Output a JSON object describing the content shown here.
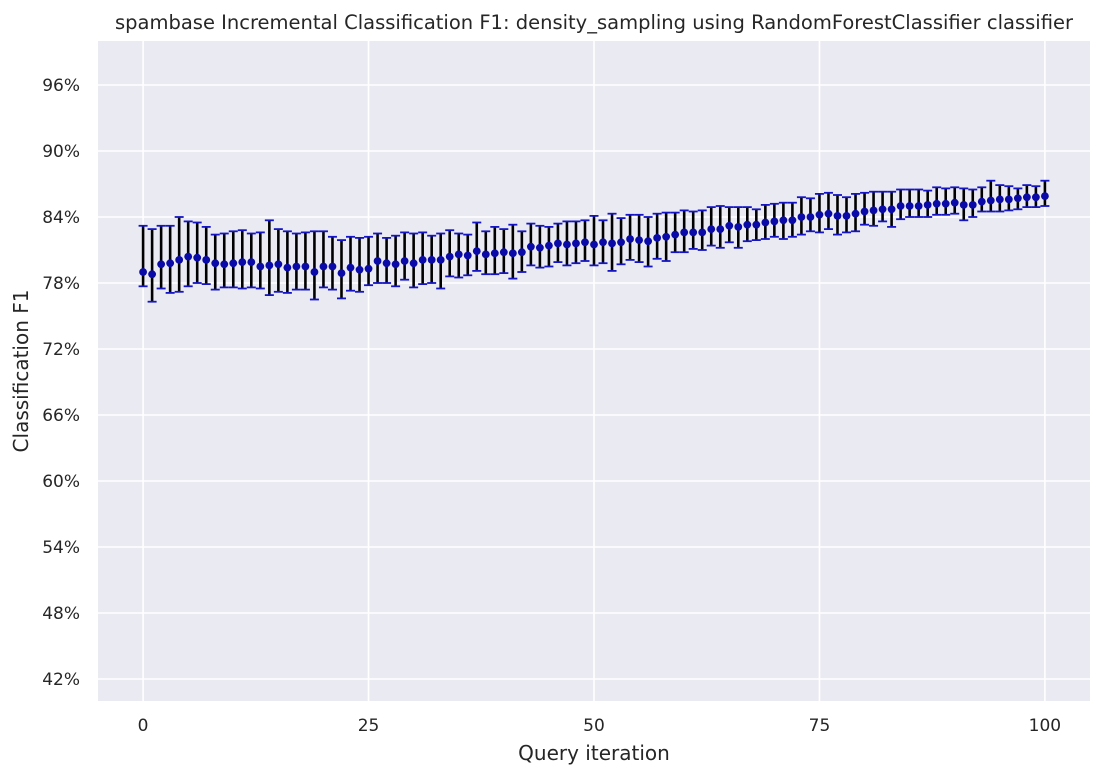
{
  "chart_data": {
    "type": "scatter",
    "title": "spambase Incremental Classification F1: density_sampling using RandomForestClassifier classifier",
    "xlabel": "Query iteration",
    "ylabel": "Classification F1",
    "xlim": [
      -5,
      105
    ],
    "ylim": [
      40,
      100
    ],
    "x_ticks": [
      0,
      25,
      50,
      75,
      100
    ],
    "x_tick_labels": [
      "0",
      "25",
      "50",
      "75",
      "100"
    ],
    "y_ticks": [
      42,
      48,
      54,
      60,
      66,
      72,
      78,
      84,
      90,
      96
    ],
    "y_tick_labels": [
      "42%",
      "48%",
      "54%",
      "60%",
      "66%",
      "72%",
      "78%",
      "84%",
      "90%",
      "96%"
    ],
    "grid": true,
    "colors": {
      "background": "#eaeaf2",
      "grid": "#ffffff",
      "marker": "#0a0aa8",
      "errorbar": "#000000",
      "cap": "#1414c8"
    },
    "series": [
      {
        "name": "density_sampling",
        "x": [
          0,
          1,
          2,
          3,
          4,
          5,
          6,
          7,
          8,
          9,
          10,
          11,
          12,
          13,
          14,
          15,
          16,
          17,
          18,
          19,
          20,
          21,
          22,
          23,
          24,
          25,
          26,
          27,
          28,
          29,
          30,
          31,
          32,
          33,
          34,
          35,
          36,
          37,
          38,
          39,
          40,
          41,
          42,
          43,
          44,
          45,
          46,
          47,
          48,
          49,
          50,
          51,
          52,
          53,
          54,
          55,
          56,
          57,
          58,
          59,
          60,
          61,
          62,
          63,
          64,
          65,
          66,
          67,
          68,
          69,
          70,
          71,
          72,
          73,
          74,
          75,
          76,
          77,
          78,
          79,
          80,
          81,
          82,
          83,
          84,
          85,
          86,
          87,
          88,
          89,
          90,
          91,
          92,
          93,
          94,
          95,
          96,
          97,
          98,
          99,
          100
        ],
        "mean": [
          79.0,
          78.8,
          79.7,
          79.8,
          80.1,
          80.4,
          80.3,
          80.1,
          79.8,
          79.7,
          79.8,
          79.9,
          79.9,
          79.5,
          79.6,
          79.7,
          79.4,
          79.5,
          79.5,
          79.0,
          79.5,
          79.5,
          78.9,
          79.4,
          79.2,
          79.3,
          80.0,
          79.8,
          79.7,
          80.0,
          79.8,
          80.1,
          80.1,
          80.1,
          80.4,
          80.6,
          80.5,
          80.9,
          80.6,
          80.7,
          80.8,
          80.7,
          80.8,
          81.3,
          81.2,
          81.4,
          81.6,
          81.5,
          81.6,
          81.7,
          81.5,
          81.7,
          81.6,
          81.7,
          82.0,
          81.9,
          81.8,
          82.1,
          82.2,
          82.4,
          82.6,
          82.6,
          82.6,
          82.9,
          82.9,
          83.2,
          83.1,
          83.3,
          83.3,
          83.5,
          83.6,
          83.7,
          83.7,
          84.0,
          84.0,
          84.2,
          84.3,
          84.1,
          84.1,
          84.3,
          84.5,
          84.6,
          84.7,
          84.7,
          85.0,
          85.0,
          85.0,
          85.1,
          85.2,
          85.2,
          85.3,
          85.1,
          85.1,
          85.4,
          85.5,
          85.6,
          85.6,
          85.7,
          85.8,
          85.8,
          85.9
        ],
        "lower": [
          77.7,
          76.3,
          77.5,
          77.1,
          77.2,
          77.7,
          78.0,
          77.9,
          77.4,
          77.6,
          77.6,
          77.5,
          77.6,
          77.5,
          76.9,
          77.2,
          77.1,
          77.4,
          77.4,
          76.5,
          77.6,
          77.4,
          76.6,
          77.3,
          77.2,
          77.8,
          78.0,
          78.0,
          77.7,
          78.3,
          77.6,
          77.9,
          78.0,
          77.5,
          78.6,
          78.5,
          78.7,
          79.1,
          78.8,
          78.8,
          78.9,
          78.4,
          79.0,
          79.6,
          79.4,
          79.5,
          79.9,
          79.6,
          79.8,
          80.0,
          79.6,
          79.8,
          79.1,
          79.7,
          80.1,
          79.9,
          79.5,
          80.2,
          80.0,
          80.8,
          80.8,
          81.1,
          81.0,
          81.4,
          81.2,
          81.7,
          81.2,
          81.8,
          81.9,
          82.0,
          82.2,
          82.0,
          82.2,
          82.4,
          82.7,
          82.6,
          82.9,
          82.4,
          82.6,
          82.7,
          83.3,
          83.2,
          83.6,
          83.1,
          83.8,
          84.0,
          84.0,
          84.0,
          84.2,
          84.2,
          84.3,
          83.7,
          84.0,
          84.5,
          84.5,
          84.5,
          84.6,
          84.7,
          84.9,
          84.9,
          85.0
        ],
        "upper": [
          83.2,
          82.9,
          83.2,
          83.2,
          84.0,
          83.6,
          83.5,
          83.1,
          82.4,
          82.5,
          82.7,
          82.8,
          82.5,
          82.6,
          83.7,
          82.9,
          82.7,
          82.5,
          82.6,
          82.7,
          82.7,
          82.2,
          81.9,
          82.2,
          82.1,
          82.2,
          82.5,
          82.1,
          82.3,
          82.6,
          82.5,
          82.6,
          82.3,
          82.5,
          82.8,
          82.5,
          82.4,
          83.5,
          82.7,
          83.1,
          82.9,
          83.3,
          82.7,
          83.4,
          83.2,
          83.1,
          83.4,
          83.6,
          83.6,
          83.7,
          84.1,
          83.7,
          84.3,
          83.9,
          84.2,
          84.2,
          84.0,
          84.3,
          84.4,
          84.4,
          84.6,
          84.5,
          84.6,
          84.9,
          85.0,
          84.9,
          84.9,
          84.9,
          84.7,
          85.1,
          85.2,
          85.3,
          85.3,
          85.8,
          85.7,
          86.1,
          86.2,
          86.0,
          85.8,
          86.1,
          86.2,
          86.3,
          86.3,
          86.3,
          86.5,
          86.5,
          86.5,
          86.4,
          86.7,
          86.6,
          86.7,
          86.6,
          86.5,
          86.7,
          87.3,
          86.9,
          86.8,
          86.6,
          86.9,
          86.8,
          87.3
        ]
      }
    ]
  }
}
